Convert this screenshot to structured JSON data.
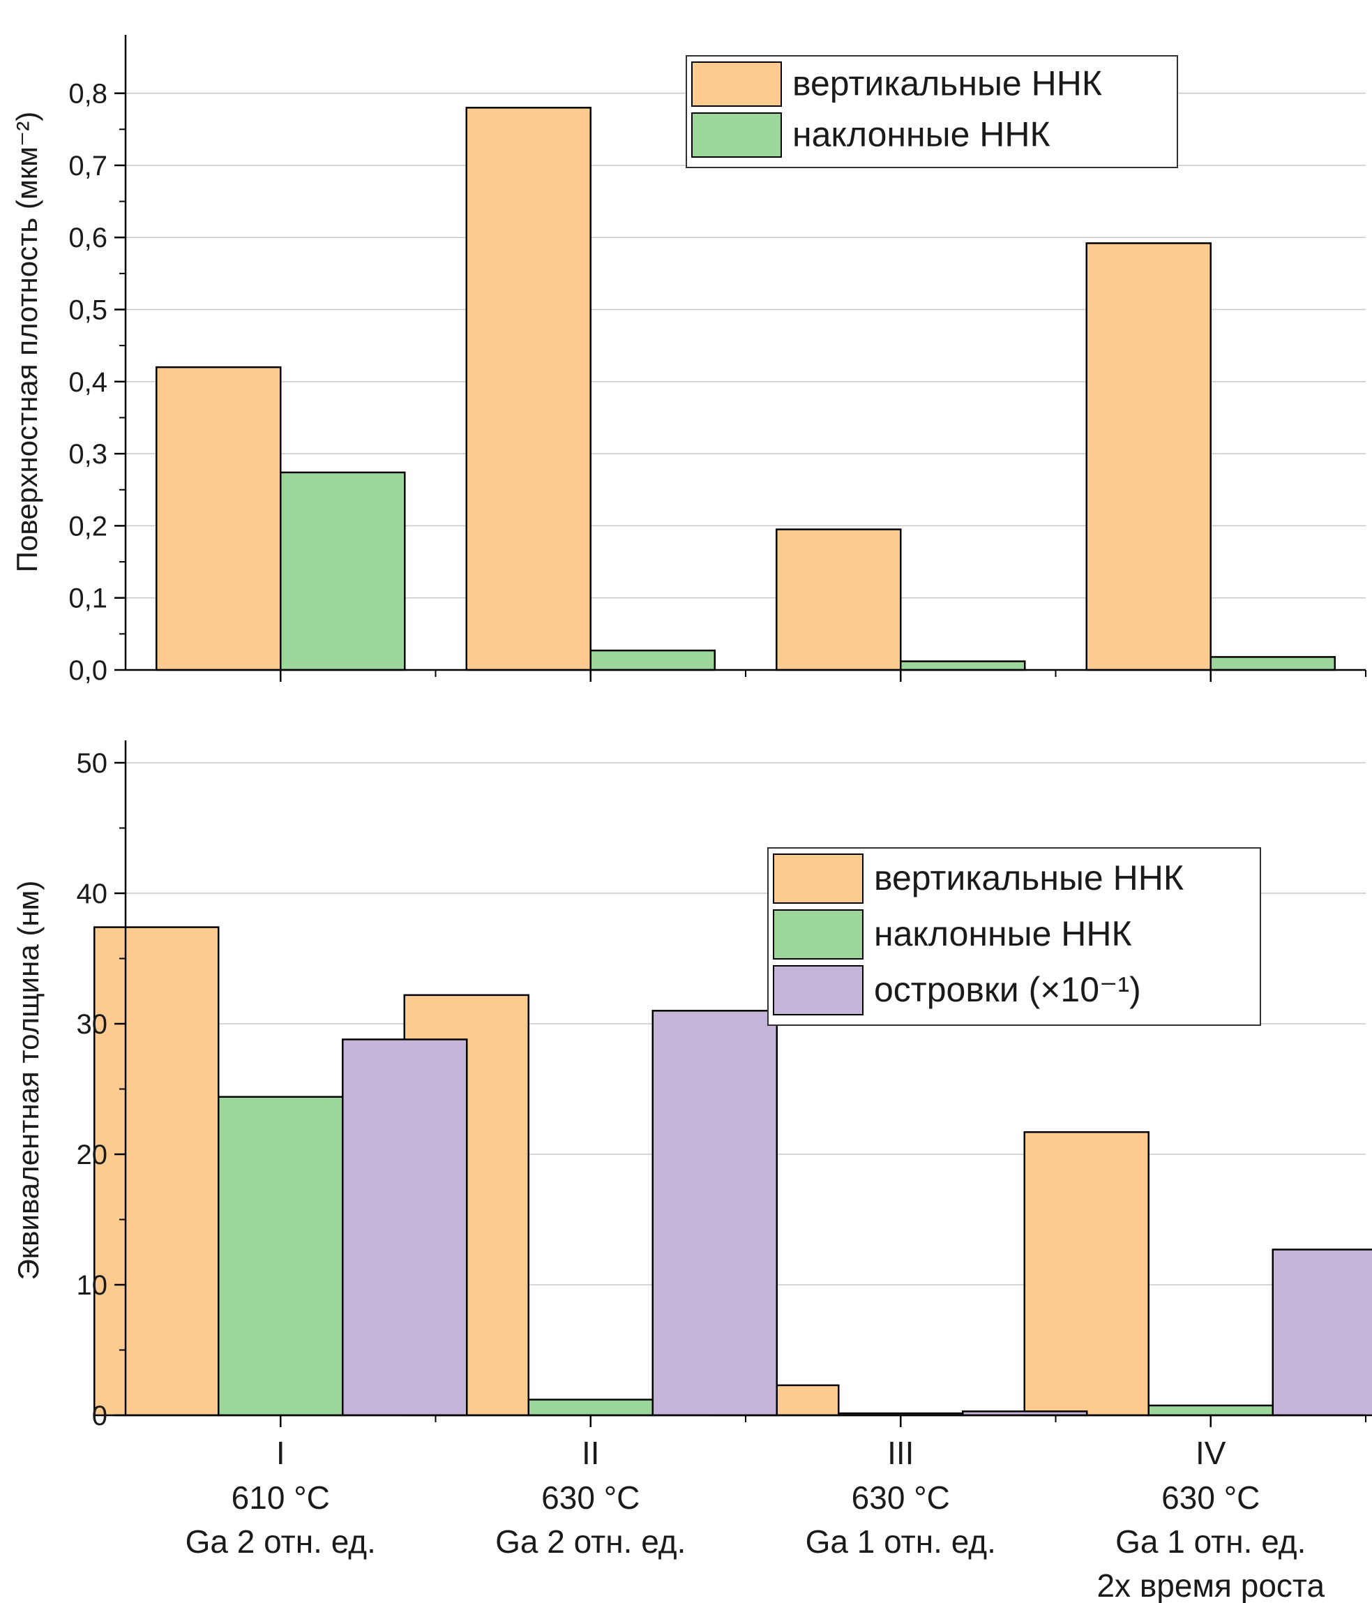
{
  "categories": [
    {
      "roman": "I",
      "temp": "610 °C",
      "flux": "Ga 2 отн. ед.",
      "extra": ""
    },
    {
      "roman": "II",
      "temp": "630 °C",
      "flux": "Ga 2 отн. ед.",
      "extra": ""
    },
    {
      "roman": "III",
      "temp": "630 °C",
      "flux": "Ga 1 отн. ед.",
      "extra": ""
    },
    {
      "roman": "IV",
      "temp": "630 °C",
      "flux": "Ga 1 отн. ед.",
      "extra": "2x время роста"
    }
  ],
  "chart_data": [
    {
      "type": "bar",
      "categories": [
        "I",
        "II",
        "III",
        "IV"
      ],
      "ylabel": "Поверхностная плотность (мкм⁻²)",
      "ylim": [
        0,
        0.85
      ],
      "yticks": [
        "0,0",
        "0,1",
        "0,2",
        "0,3",
        "0,4",
        "0,5",
        "0,6",
        "0,7",
        "0,8"
      ],
      "grid": true,
      "legend_position": "top-right",
      "series": [
        {
          "name": "вертикальные ННК",
          "color": "#fdcb90",
          "values": [
            0.42,
            0.78,
            0.195,
            0.592
          ]
        },
        {
          "name": "наклонные ННК",
          "color": "#9dd69a",
          "values": [
            0.274,
            0.027,
            0.012,
            0.018
          ]
        }
      ]
    },
    {
      "type": "bar",
      "categories": [
        "I",
        "II",
        "III",
        "IV"
      ],
      "ylabel": "Эквивалентная толщина (нм)",
      "ylim": [
        0,
        50
      ],
      "yticks": [
        "0",
        "10",
        "20",
        "30",
        "40",
        "50"
      ],
      "grid": true,
      "legend_position": "top-right",
      "series": [
        {
          "name": "вертикальные ННК",
          "color": "#fdcb90",
          "values": [
            37.4,
            32.2,
            2.3,
            21.7
          ]
        },
        {
          "name": "наклонные ННК",
          "color": "#9dd69a",
          "values": [
            24.4,
            1.2,
            0.15,
            0.75
          ]
        },
        {
          "name": "островки (×10⁻¹)",
          "color": "#c5b5d8",
          "values": [
            28.8,
            31.0,
            0.3,
            12.7
          ]
        }
      ]
    }
  ]
}
